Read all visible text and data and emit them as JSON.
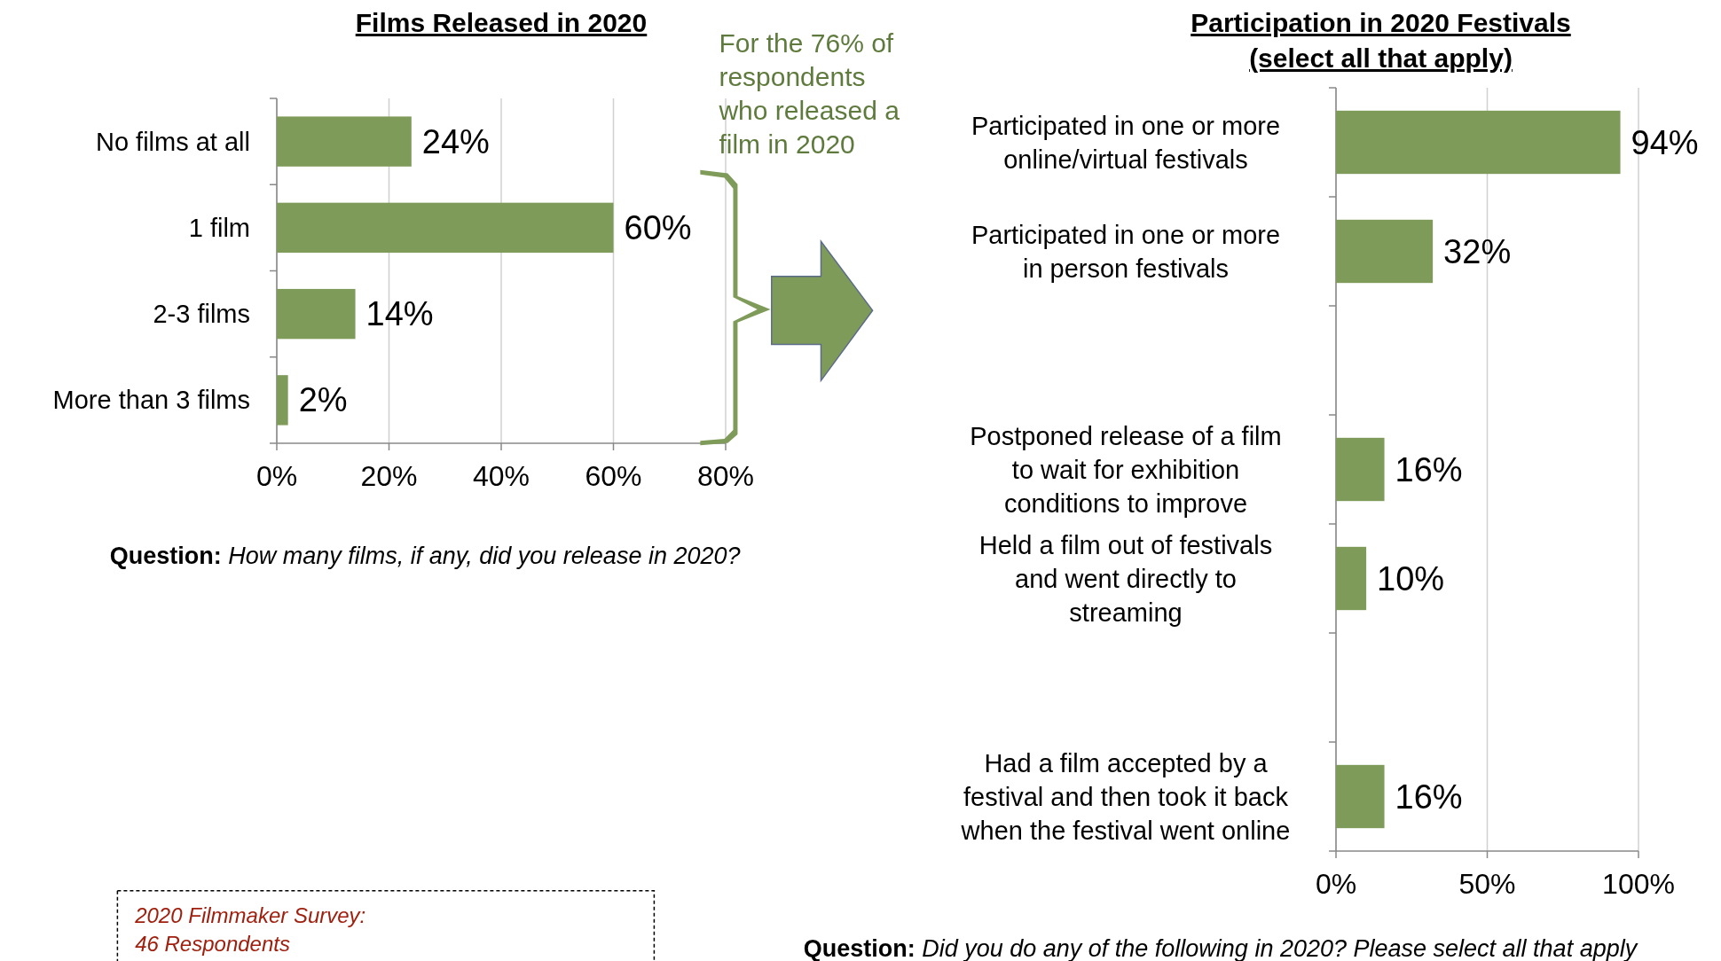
{
  "chart_data": [
    {
      "type": "bar",
      "orientation": "horizontal",
      "title": "Films Released in 2020",
      "categories": [
        "No films at all",
        "1 film",
        "2-3 films",
        "More than 3 films"
      ],
      "values": [
        24,
        60,
        14,
        2
      ],
      "value_labels": [
        "24%",
        "60%",
        "14%",
        "2%"
      ],
      "color": "#7f9b59",
      "xlim": [
        0,
        80
      ],
      "xticks": [
        {
          "value": 0,
          "label": "0%"
        },
        {
          "value": 20,
          "label": "20%"
        },
        {
          "value": 40,
          "label": "40%"
        },
        {
          "value": 60,
          "label": "60%"
        },
        {
          "value": 80,
          "label": "80%"
        }
      ],
      "grid": "x",
      "annotations": [
        "For the 76% of\nrespondents\nwho released a\nfilm in 2020",
        "Question: How many films, if any, did you release in 2020?",
        "2020 Filmmaker Survey:\n46 Respondents"
      ]
    },
    {
      "type": "bar",
      "orientation": "horizontal",
      "title": "Participation in 2020 Festivals\n(select all that apply)",
      "categories": [
        "Participated in one or more\nonline/virtual festivals",
        "Participated in one or more\nin person festivals",
        null,
        "Postponed release of a film\nto wait for exhibition\nconditions to improve",
        "Held a film out of festivals\nand went directly to\nstreaming",
        null,
        "Had a film accepted by a\nfestival and then took it back\nwhen the festival went online"
      ],
      "values": [
        94,
        32,
        null,
        16,
        10,
        null,
        16
      ],
      "value_labels": [
        "94%",
        "32%",
        null,
        "16%",
        "10%",
        null,
        "16%"
      ],
      "color": "#7f9b59",
      "xlim": [
        0,
        100
      ],
      "xticks": [
        {
          "value": 0,
          "label": "0%"
        },
        {
          "value": 50,
          "label": "50%"
        },
        {
          "value": 100,
          "label": "100%"
        }
      ],
      "grid": "x",
      "annotations": [
        "Question: Did you do any of the following in 2020? Please select all that apply"
      ]
    }
  ]
}
